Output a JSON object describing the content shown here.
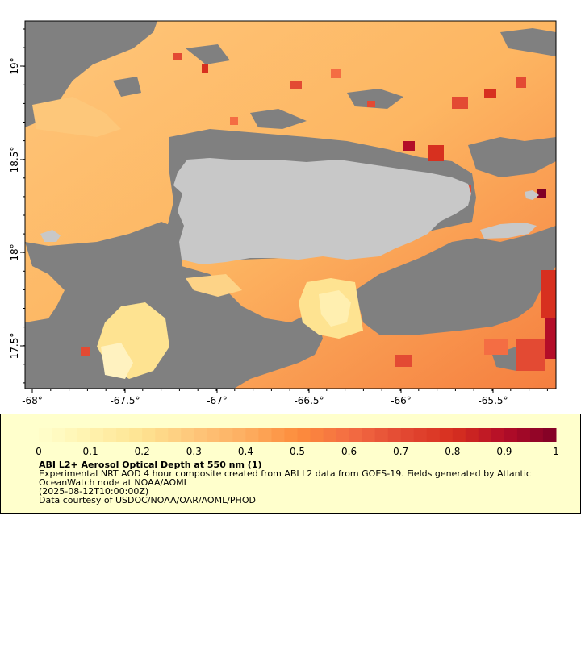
{
  "map": {
    "x_ticks": [
      "-68°",
      "-67.5°",
      "-67°",
      "-66.5°",
      "-66°",
      "-65.5°"
    ],
    "y_ticks": [
      "19°",
      "18.5°",
      "18°",
      "17.5°"
    ],
    "lon_range": [
      -68.05,
      -65.2
    ],
    "lat_range": [
      17.2,
      19.25
    ],
    "colors": {
      "land": "#c8c8c8",
      "no_data": "#808080"
    }
  },
  "colorbar": {
    "tick_labels": [
      "0",
      "0.1",
      "0.2",
      "0.3",
      "0.4",
      "0.5",
      "0.6",
      "0.7",
      "0.8",
      "0.9",
      "1"
    ],
    "stops": [
      "#ffffcc",
      "#fff2ae",
      "#fee391",
      "#fec67a",
      "#fdae61",
      "#fd8d3c",
      "#f46d43",
      "#e34a33",
      "#d7301f",
      "#b30d28",
      "#800026"
    ]
  },
  "legend": {
    "title": "ABI L2+ Aerosol Optical Depth at 550 nm (1)",
    "line1": "Experimental NRT AOD 4 hour composite created from ABI L2 data from GOES-19. Fields generated by Atlantic OceanWatch node at NOAA/AOML",
    "line2": "(2025-08-12T10:00:00Z)",
    "line3": "Data courtesy of USDOC/NOAA/OAR/AOML/PHOD"
  }
}
